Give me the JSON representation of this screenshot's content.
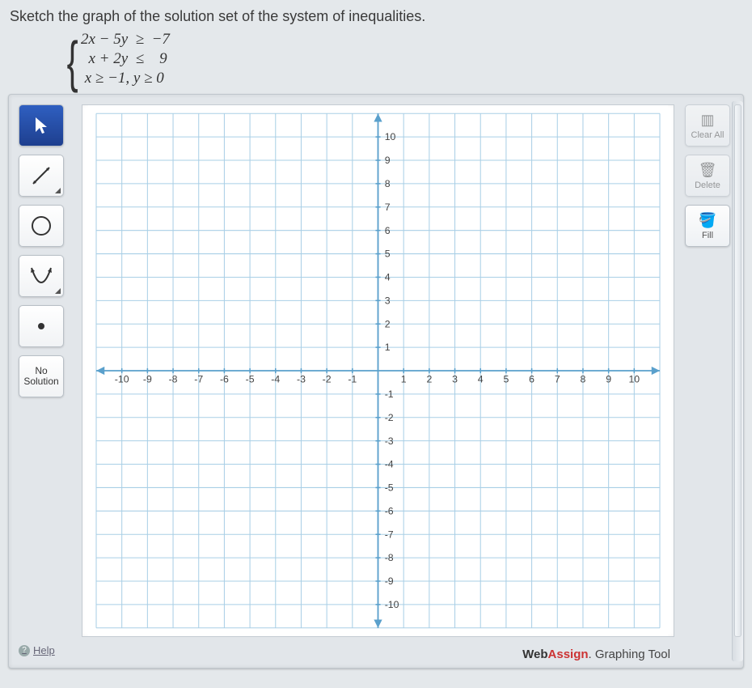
{
  "prompt": "Sketch the graph of the solution set of the system of inequalities.",
  "equations": {
    "line1": "2x − 5y  ≥  −7",
    "line2": "  x + 2y  ≤    9",
    "line3": " x ≥ −1, y ≥ 0"
  },
  "tools": {
    "pointer": "pointer",
    "line": "line",
    "circle": "circle",
    "parabola": "parabola",
    "point": "point",
    "nosolution_l1": "No",
    "nosolution_l2": "Solution"
  },
  "right": {
    "clear_label": "Clear All",
    "delete_label": "Delete",
    "fill_label": "Fill"
  },
  "help_label": "Help",
  "brand": {
    "web": "Web",
    "assign": "Assign",
    "suffix": ". Graphing Tool"
  },
  "grid": {
    "background": "#ffffff",
    "grid_color": "#a9cfe6",
    "axis_color": "#5aa0cc",
    "xmin": -11,
    "xmax": 11,
    "ymin": -11,
    "ymax": 11,
    "xtick_step": 1,
    "ytick_step": 1,
    "xlabel_min": -10,
    "xlabel_max": 10,
    "ylabel_min": -10,
    "ylabel_max": 10,
    "label_color": "#444",
    "label_fontsize": 12
  }
}
